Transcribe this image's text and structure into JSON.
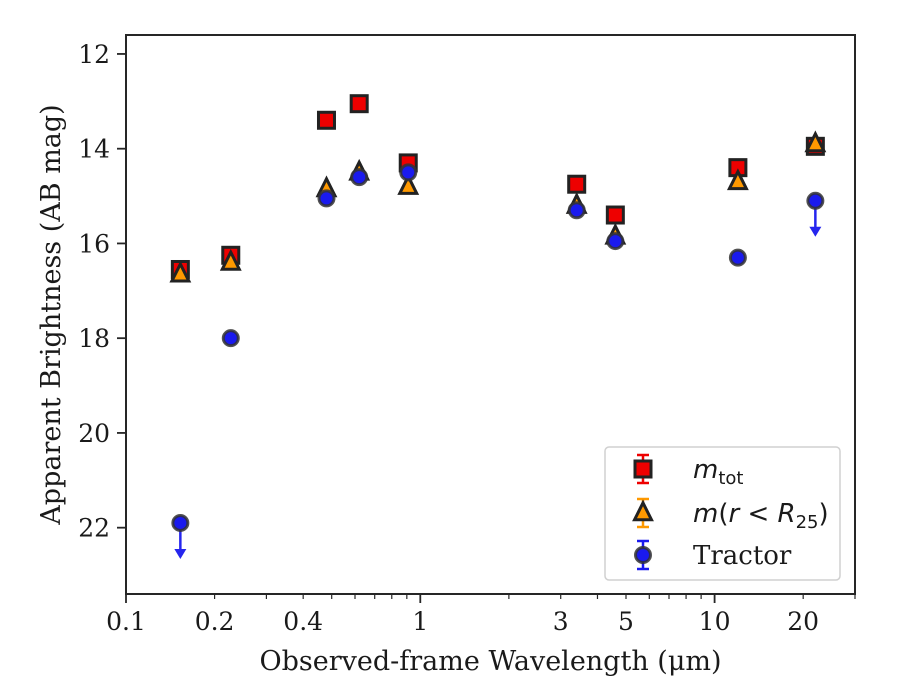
{
  "chart_data": {
    "type": "scatter",
    "xlabel": "Observed-frame Wavelength (μm)",
    "ylabel": "Apparent Brightness (AB mag)",
    "xscale": "log",
    "xlim": [
      0.1,
      30
    ],
    "ylim": [
      23.4,
      11.6
    ],
    "y_inverted": true,
    "grid": false,
    "legend_position": "lower-right",
    "x_ticks": [
      {
        "value": 0.1,
        "label": "0.1"
      },
      {
        "value": 0.2,
        "label": "0.2"
      },
      {
        "value": 0.4,
        "label": "0.4"
      },
      {
        "value": 1,
        "label": "1"
      },
      {
        "value": 3,
        "label": "3"
      },
      {
        "value": 5,
        "label": "5"
      },
      {
        "value": 10,
        "label": "10"
      },
      {
        "value": 20,
        "label": "20"
      }
    ],
    "y_ticks": [
      {
        "value": 12,
        "label": "12"
      },
      {
        "value": 14,
        "label": "14"
      },
      {
        "value": 16,
        "label": "16"
      },
      {
        "value": 18,
        "label": "18"
      },
      {
        "value": 20,
        "label": "20"
      },
      {
        "value": 22,
        "label": "22"
      }
    ],
    "series": [
      {
        "id": "m_tot",
        "legend_label": "m_tot",
        "marker": "square",
        "color": "#ee0000",
        "edge_color": "#222222",
        "x": [
          0.153,
          0.227,
          0.48,
          0.62,
          0.91,
          3.4,
          4.6,
          12.0,
          22.0
        ],
        "y": [
          16.55,
          16.25,
          13.4,
          13.05,
          14.3,
          14.75,
          15.4,
          14.4,
          13.95
        ],
        "upper_limit": [
          false,
          false,
          false,
          false,
          false,
          false,
          false,
          false,
          false
        ]
      },
      {
        "id": "m_r25",
        "legend_label": "m(r<R25)",
        "marker": "triangle",
        "color": "#ff9900",
        "edge_color": "#222222",
        "x": [
          0.153,
          0.227,
          0.48,
          0.62,
          0.91,
          3.4,
          4.6,
          12.0,
          22.0
        ],
        "y": [
          16.65,
          16.4,
          14.85,
          14.5,
          14.8,
          15.2,
          15.85,
          14.7,
          13.9
        ],
        "upper_limit": [
          false,
          false,
          false,
          false,
          false,
          false,
          false,
          false,
          false
        ]
      },
      {
        "id": "tractor",
        "name": "Tractor",
        "marker": "circle",
        "color": "#1a1aee",
        "edge_color": "#333333",
        "x": [
          0.153,
          0.227,
          0.48,
          0.62,
          0.91,
          3.4,
          4.6,
          12.0,
          22.0
        ],
        "y": [
          21.9,
          18.0,
          15.05,
          14.6,
          14.5,
          15.3,
          15.95,
          16.3,
          15.1
        ],
        "upper_limit": [
          true,
          false,
          false,
          false,
          false,
          false,
          false,
          false,
          true
        ]
      }
    ]
  }
}
